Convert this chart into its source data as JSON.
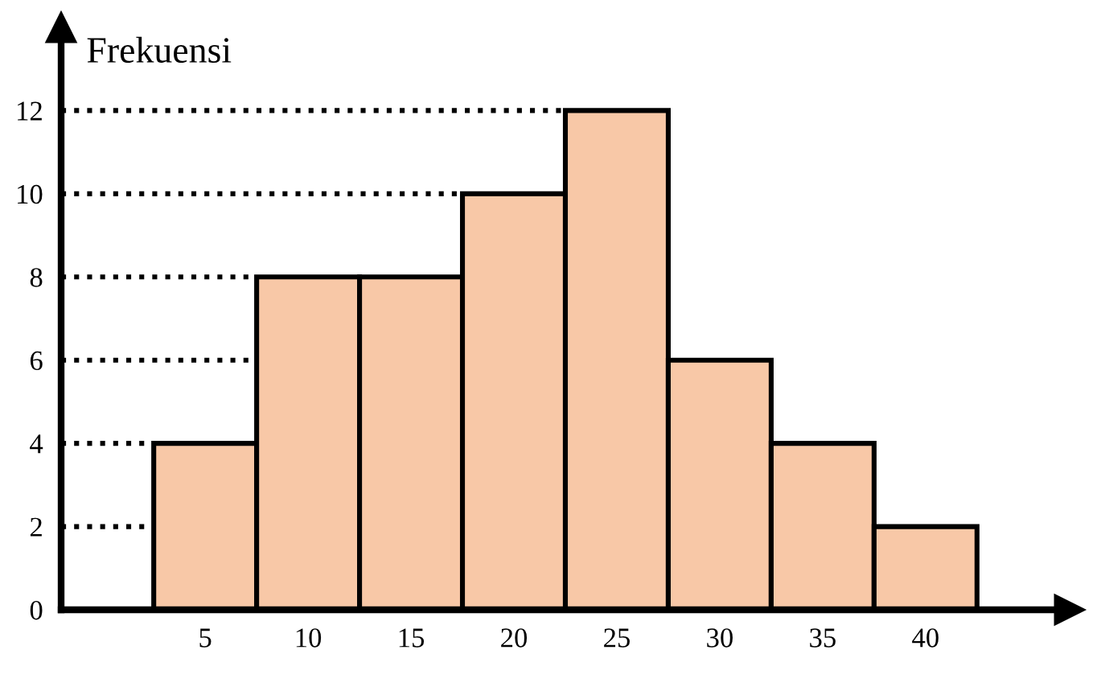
{
  "chart_data": {
    "type": "histogram",
    "ylabel": "Frekuensi",
    "bins": [
      2.5,
      7.5,
      12.5,
      17.5,
      22.5,
      27.5,
      32.5,
      37.5,
      42.5
    ],
    "values": [
      4,
      8,
      8,
      10,
      12,
      6,
      4,
      2
    ],
    "color": "#f8c8a7",
    "xlim": [
      -2,
      47
    ],
    "xticks": [
      5,
      10,
      15,
      20,
      25,
      30,
      35,
      40
    ],
    "ylim": [
      0,
      14
    ],
    "yticks": [
      0,
      2,
      4,
      6,
      8,
      10,
      12
    ],
    "ref_lines": [
      {
        "axis": "y",
        "value": 2,
        "color": "#000000",
        "line_style": "dotted"
      },
      {
        "axis": "y",
        "value": 4,
        "color": "#000000",
        "line_style": "dotted"
      },
      {
        "axis": "y",
        "value": 6,
        "color": "#000000",
        "line_style": "dotted"
      },
      {
        "axis": "y",
        "value": 8,
        "color": "#000000",
        "line_style": "dotted"
      },
      {
        "axis": "y",
        "value": 10,
        "color": "#000000",
        "line_style": "dotted"
      },
      {
        "axis": "y",
        "value": 12,
        "color": "#000000",
        "line_style": "dotted"
      }
    ]
  }
}
